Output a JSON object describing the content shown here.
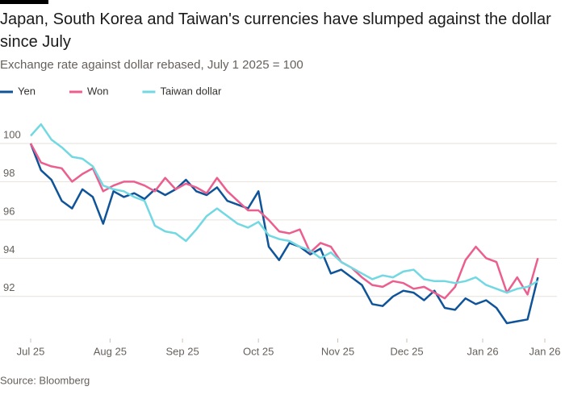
{
  "chart_data": {
    "type": "line",
    "title": "Japan, South Korea and Taiwan's currencies have slumped against the dollar since July",
    "subtitle": "Exchange rate against dollar rebased, July 1 2025 = 100",
    "source": "Source: Bloomberg",
    "x": [
      0,
      3,
      6,
      9,
      12,
      15,
      18,
      21,
      24,
      27,
      30,
      33,
      36,
      39,
      42,
      45,
      48,
      51,
      54,
      57,
      60,
      63,
      66,
      69,
      72,
      75,
      78,
      81,
      84,
      87,
      90,
      93,
      96,
      99,
      102,
      105,
      108,
      111,
      114,
      117,
      120,
      123,
      126,
      129,
      132,
      135,
      138,
      141,
      144,
      147
    ],
    "xlim": [
      0,
      149
    ],
    "xticks": [
      {
        "value": 0,
        "label": "Jul 25"
      },
      {
        "value": 23,
        "label": "Aug 25"
      },
      {
        "value": 44,
        "label": "Sep 25"
      },
      {
        "value": 66,
        "label": "Oct 25"
      },
      {
        "value": 89,
        "label": "Nov 25"
      },
      {
        "value": 109,
        "label": "Dec 25"
      },
      {
        "value": 131,
        "label": "Jan 26"
      },
      {
        "value": 149,
        "label": "Jan 26"
      }
    ],
    "ylim": [
      89.8,
      101.6
    ],
    "yticks": [
      92,
      94,
      96,
      98,
      100
    ],
    "grid": true,
    "legend": "top-left",
    "series": [
      {
        "name": "Yen",
        "color": "#0f5499",
        "values": [
          100,
          98.6,
          98.1,
          97.0,
          96.6,
          97.6,
          97.2,
          95.8,
          97.5,
          97.2,
          97.4,
          97.1,
          97.6,
          97.3,
          97.6,
          98.1,
          97.5,
          97.3,
          97.7,
          97.0,
          96.8,
          96.6,
          97.5,
          94.6,
          93.9,
          94.8,
          94.6,
          94.2,
          94.5,
          93.2,
          93.4,
          93.0,
          92.6,
          91.6,
          91.5,
          92.0,
          92.3,
          92.2,
          91.8,
          92.3,
          91.4,
          91.3,
          91.9,
          91.6,
          91.8,
          91.4,
          90.6,
          90.7,
          90.8,
          93.0
        ]
      },
      {
        "name": "Won",
        "color": "#eb5e8d",
        "values": [
          100,
          99.0,
          98.8,
          98.7,
          98.0,
          98.4,
          98.7,
          97.5,
          97.8,
          98.0,
          98.0,
          97.8,
          97.5,
          98.2,
          97.6,
          97.9,
          97.7,
          97.4,
          98.2,
          97.5,
          97.0,
          96.5,
          96.5,
          96.0,
          95.4,
          95.3,
          95.5,
          94.3,
          94.8,
          94.6,
          93.8,
          93.5,
          93.0,
          92.6,
          92.5,
          92.8,
          92.7,
          92.4,
          92.5,
          92.2,
          91.9,
          92.5,
          93.9,
          94.6,
          94.0,
          93.8,
          92.2,
          93.0,
          92.1,
          94.0
        ]
      },
      {
        "name": "Taiwan dollar",
        "color": "#72d8e2",
        "values": [
          100.4,
          101.0,
          100.2,
          99.8,
          99.3,
          99.2,
          98.8,
          97.8,
          97.6,
          97.5,
          97.2,
          97.0,
          95.7,
          95.4,
          95.3,
          94.9,
          95.5,
          96.2,
          96.6,
          96.2,
          95.8,
          95.6,
          95.9,
          95.2,
          95.0,
          94.9,
          94.6,
          94.4,
          94.0,
          94.3,
          93.8,
          93.5,
          93.2,
          92.9,
          93.1,
          93.0,
          93.3,
          93.4,
          92.9,
          92.8,
          92.8,
          92.7,
          92.8,
          93.0,
          92.6,
          92.4,
          92.2,
          92.4,
          92.5,
          92.8
        ]
      }
    ]
  }
}
